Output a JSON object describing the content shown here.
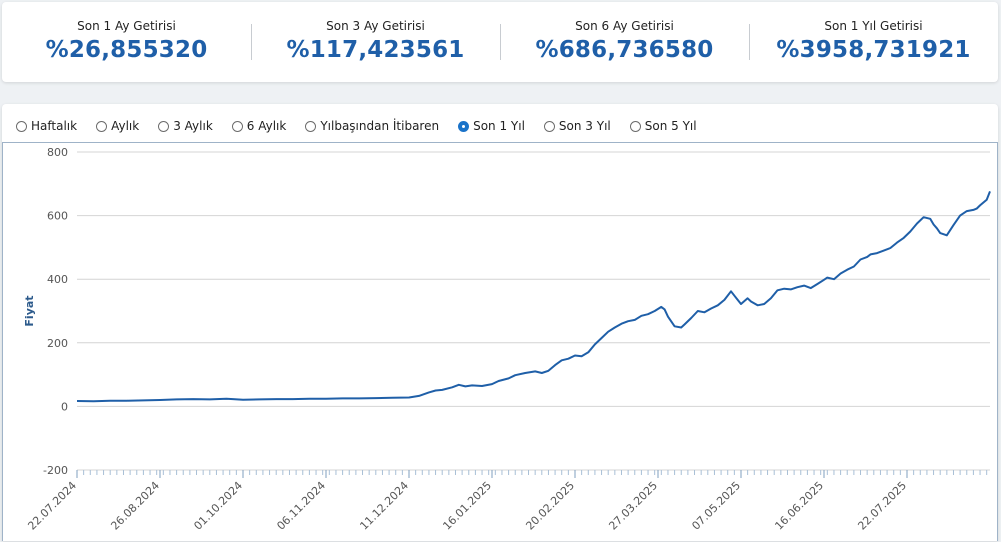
{
  "stats": [
    {
      "label": "Son 1 Ay Getirisi",
      "value": "%26,855320"
    },
    {
      "label": "Son 3 Ay Getirisi",
      "value": "%117,423561"
    },
    {
      "label": "Son 6 Ay Getirisi",
      "value": "%686,736580"
    },
    {
      "label": "Son 1 Yıl Getirisi",
      "value": "%3958,731921"
    }
  ],
  "range_options": [
    {
      "label": "Haftalık",
      "checked": false
    },
    {
      "label": "Aylık",
      "checked": false
    },
    {
      "label": "3 Aylık",
      "checked": false
    },
    {
      "label": "6 Aylık",
      "checked": false
    },
    {
      "label": "Yılbaşından İtibaren",
      "checked": false
    },
    {
      "label": "Son 1 Yıl",
      "checked": true
    },
    {
      "label": "Son 3 Yıl",
      "checked": false
    },
    {
      "label": "Son 5 Yıl",
      "checked": false
    }
  ],
  "colors": {
    "line": "#1f5fa8",
    "accent": "#1f5fa8",
    "grid": "#d4d4d4"
  },
  "chart_data": {
    "type": "line",
    "ylabel": "Fiyat",
    "ylim": [
      -200,
      800
    ],
    "yticks": [
      -200,
      0,
      200,
      400,
      600,
      800
    ],
    "x_tick_labels": [
      "22.07.2024",
      "26.08.2024",
      "01.10.2024",
      "06.11.2024",
      "11.12.2024",
      "16.01.2025",
      "20.02.2025",
      "27.03.2025",
      "07.05.2025",
      "16.06.2025",
      "22.07.2025"
    ],
    "x_tick_positions": [
      0,
      25,
      50,
      75,
      100,
      125,
      150,
      175,
      200,
      225,
      250
    ],
    "grid": true,
    "series": [
      {
        "points": [
          [
            0,
            17
          ],
          [
            5,
            16
          ],
          [
            10,
            18
          ],
          [
            15,
            18
          ],
          [
            20,
            19
          ],
          [
            25,
            20
          ],
          [
            30,
            22
          ],
          [
            35,
            23
          ],
          [
            40,
            22
          ],
          [
            45,
            24
          ],
          [
            47,
            23
          ],
          [
            50,
            21
          ],
          [
            55,
            22
          ],
          [
            60,
            23
          ],
          [
            65,
            23
          ],
          [
            70,
            24
          ],
          [
            75,
            24
          ],
          [
            80,
            25
          ],
          [
            85,
            25
          ],
          [
            90,
            26
          ],
          [
            95,
            27
          ],
          [
            100,
            28
          ],
          [
            103,
            33
          ],
          [
            106,
            44
          ],
          [
            108,
            50
          ],
          [
            110,
            52
          ],
          [
            113,
            60
          ],
          [
            115,
            68
          ],
          [
            117,
            63
          ],
          [
            119,
            66
          ],
          [
            122,
            64
          ],
          [
            125,
            70
          ],
          [
            127,
            80
          ],
          [
            130,
            88
          ],
          [
            132,
            98
          ],
          [
            135,
            105
          ],
          [
            138,
            110
          ],
          [
            140,
            105
          ],
          [
            142,
            112
          ],
          [
            144,
            130
          ],
          [
            146,
            145
          ],
          [
            148,
            150
          ],
          [
            150,
            160
          ],
          [
            152,
            158
          ],
          [
            154,
            170
          ],
          [
            156,
            195
          ],
          [
            158,
            215
          ],
          [
            160,
            235
          ],
          [
            162,
            248
          ],
          [
            164,
            260
          ],
          [
            166,
            268
          ],
          [
            168,
            272
          ],
          [
            170,
            285
          ],
          [
            172,
            290
          ],
          [
            174,
            300
          ],
          [
            176,
            313
          ],
          [
            177,
            305
          ],
          [
            178,
            282
          ],
          [
            180,
            252
          ],
          [
            182,
            248
          ],
          [
            183,
            258
          ],
          [
            185,
            278
          ],
          [
            187,
            300
          ],
          [
            189,
            296
          ],
          [
            191,
            308
          ],
          [
            193,
            318
          ],
          [
            195,
            335
          ],
          [
            197,
            362
          ],
          [
            198,
            348
          ],
          [
            199,
            335
          ],
          [
            200,
            322
          ],
          [
            202,
            340
          ],
          [
            203,
            330
          ],
          [
            205,
            318
          ],
          [
            207,
            322
          ],
          [
            209,
            340
          ],
          [
            211,
            365
          ],
          [
            213,
            370
          ],
          [
            215,
            368
          ],
          [
            217,
            375
          ],
          [
            219,
            380
          ],
          [
            221,
            372
          ],
          [
            223,
            385
          ],
          [
            225,
            398
          ],
          [
            226,
            405
          ],
          [
            228,
            400
          ],
          [
            230,
            418
          ],
          [
            232,
            430
          ],
          [
            234,
            440
          ],
          [
            236,
            462
          ],
          [
            238,
            470
          ],
          [
            239,
            478
          ],
          [
            241,
            482
          ],
          [
            243,
            490
          ],
          [
            245,
            498
          ],
          [
            247,
            515
          ],
          [
            249,
            530
          ],
          [
            251,
            550
          ],
          [
            253,
            575
          ],
          [
            255,
            595
          ],
          [
            257,
            590
          ],
          [
            258,
            572
          ],
          [
            259,
            560
          ],
          [
            260,
            545
          ],
          [
            262,
            538
          ],
          [
            264,
            570
          ],
          [
            266,
            600
          ],
          [
            268,
            614
          ],
          [
            270,
            618
          ],
          [
            271,
            622
          ],
          [
            272,
            632
          ],
          [
            274,
            650
          ],
          [
            275,
            676
          ]
        ]
      }
    ]
  }
}
